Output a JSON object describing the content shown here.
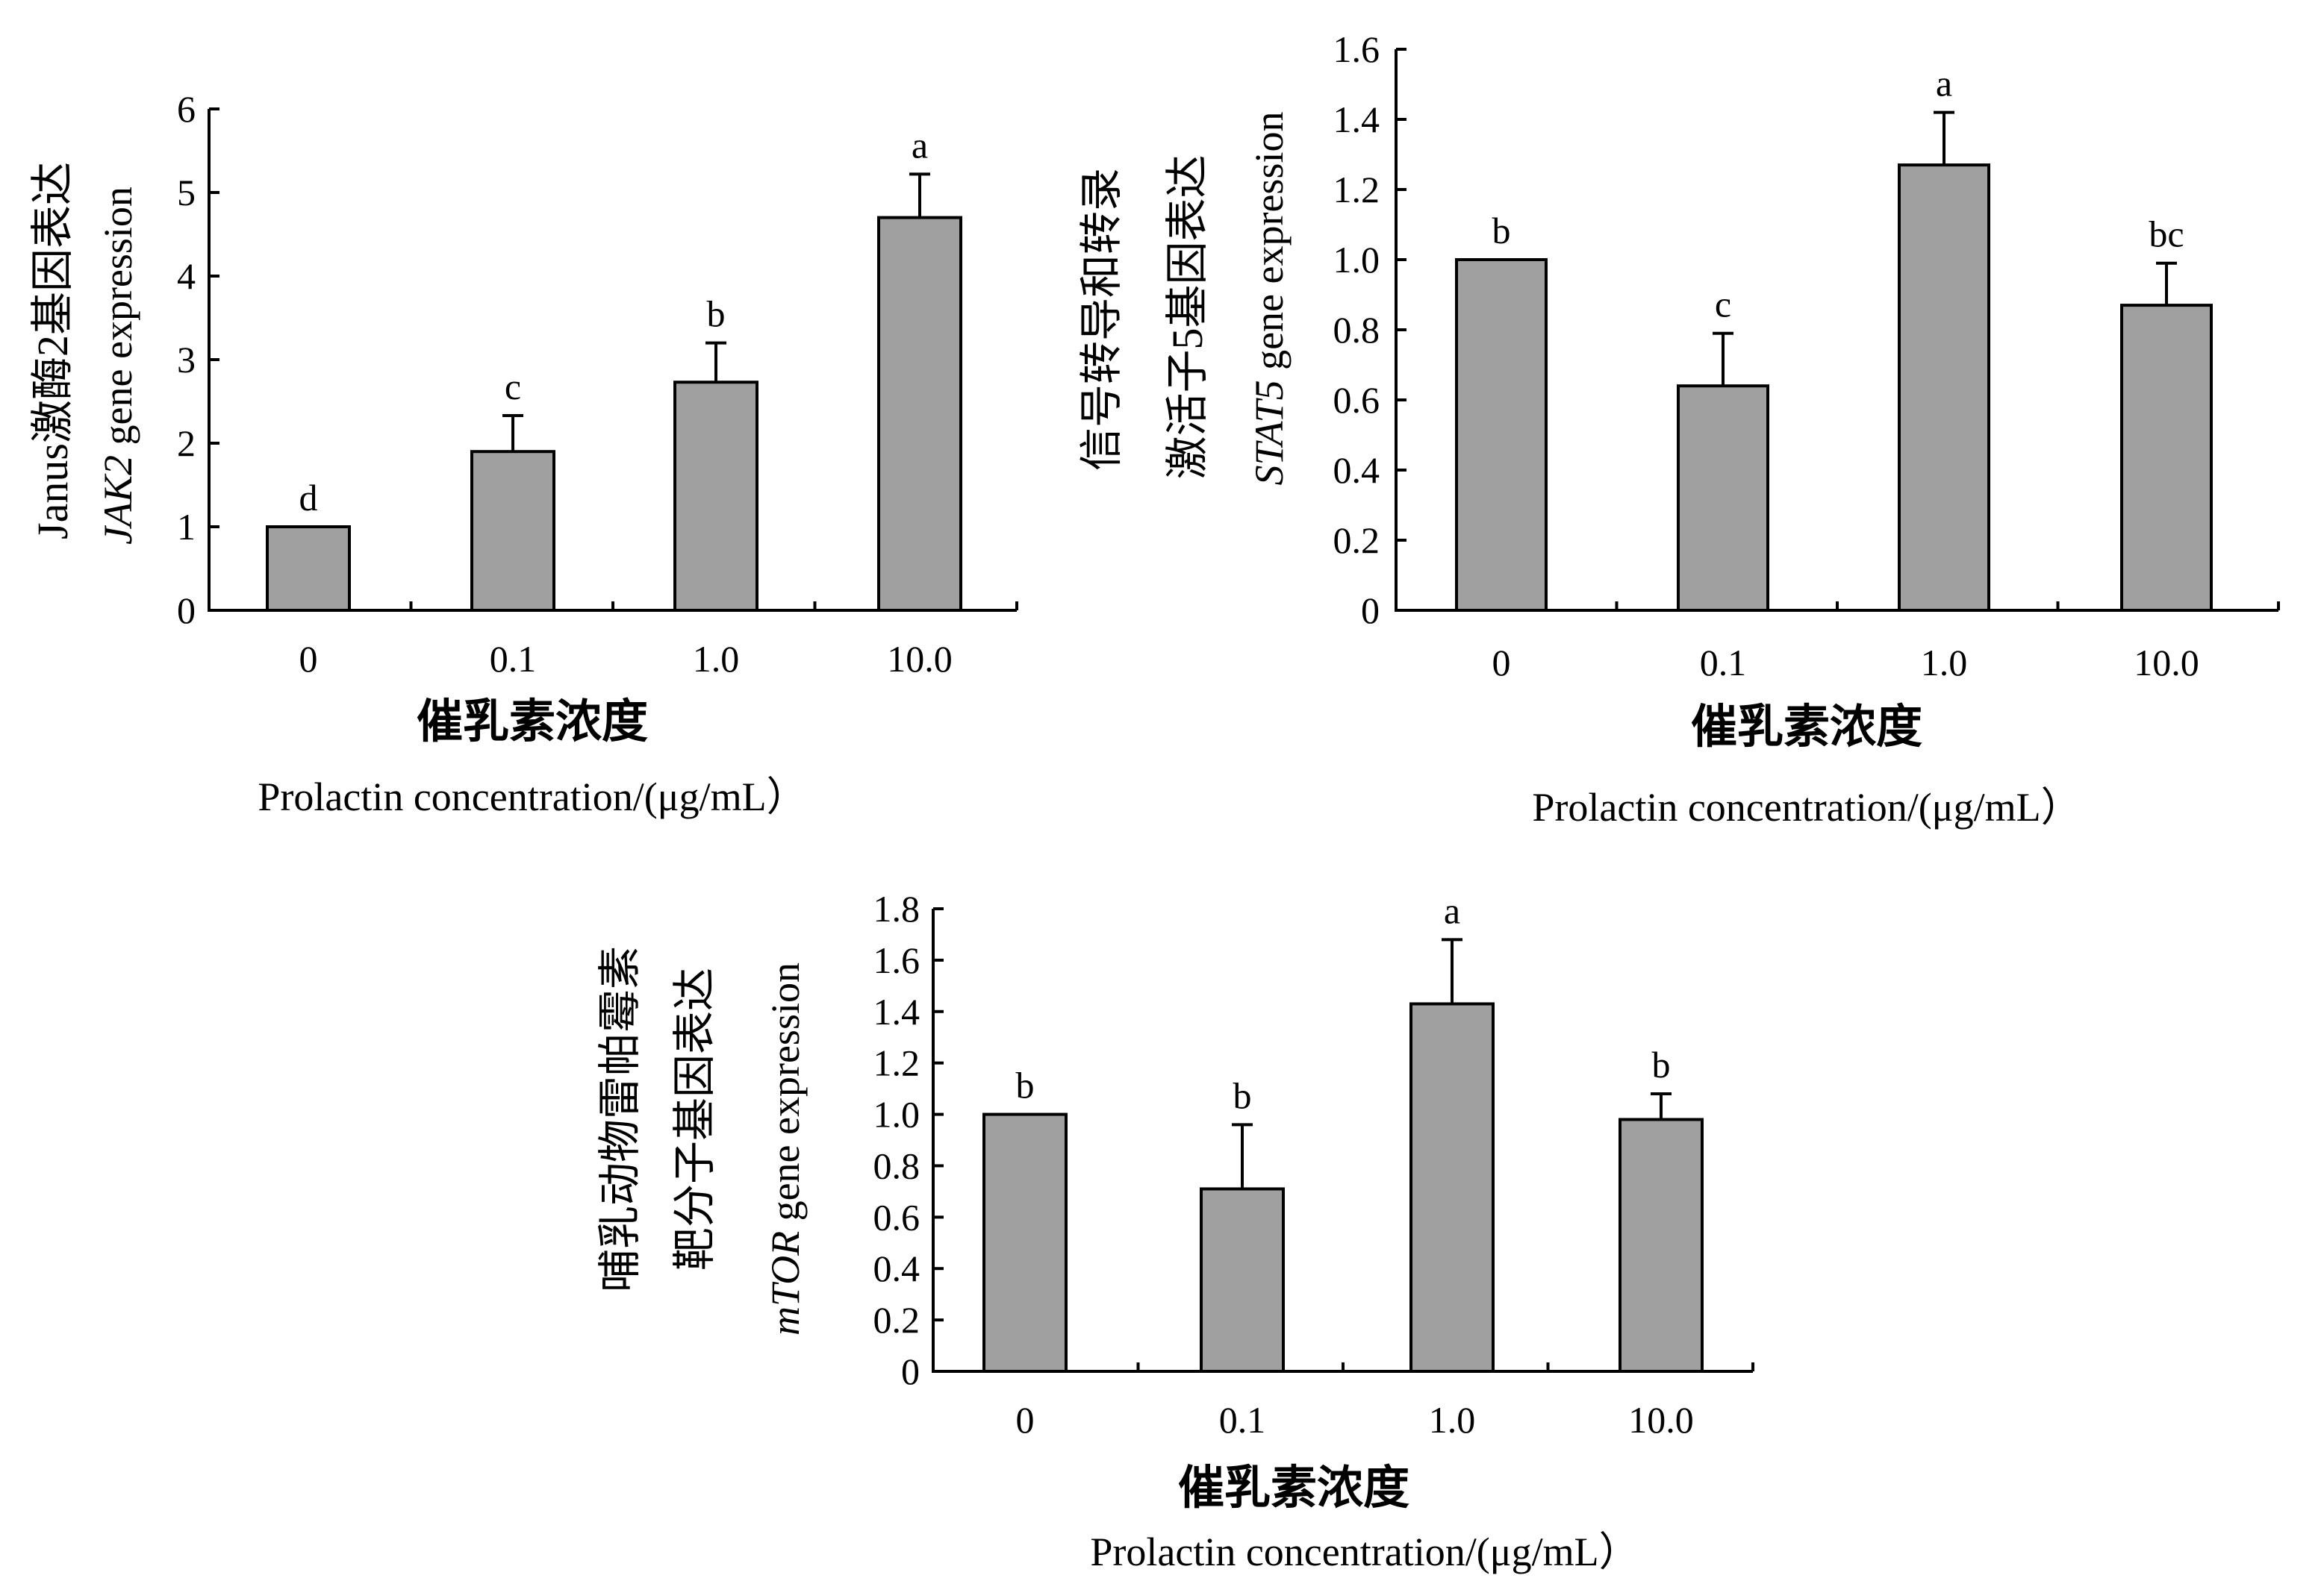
{
  "chart_data": [
    {
      "type": "bar",
      "categories": [
        "0",
        "0.1",
        "1.0",
        "10.0"
      ],
      "values": [
        1.0,
        1.9,
        2.73,
        4.7
      ],
      "errors": [
        0,
        0.43,
        0.47,
        0.52
      ],
      "significance": [
        "d",
        "c",
        "b",
        "a"
      ],
      "ylim": [
        0,
        6
      ],
      "yticks": [
        "0",
        "1",
        "2",
        "3",
        "4",
        "5",
        "6"
      ],
      "ylabel_cn": "Janus激酶2基因表达",
      "ylabel_en_italic": "JAK2",
      "ylabel_en": " gene expression",
      "xlabel_cn": "催乳素浓度",
      "xlabel_en": "Prolactin concentration/(μg/mL）",
      "bar_color": "#a0a0a0"
    },
    {
      "type": "bar",
      "categories": [
        "0",
        "0.1",
        "1.0",
        "10.0"
      ],
      "values": [
        1.0,
        0.64,
        1.27,
        0.87
      ],
      "errors": [
        0,
        0.15,
        0.15,
        0.12
      ],
      "significance": [
        "b",
        "c",
        "a",
        "bc"
      ],
      "ylim": [
        0,
        1.6
      ],
      "yticks": [
        "0",
        "0.2",
        "0.4",
        "0.6",
        "0.8",
        "1.0",
        "1.2",
        "1.4",
        "1.6"
      ],
      "ylabel_cn_1": "信号转导和转录",
      "ylabel_cn_2": "激活子5基因表达",
      "ylabel_en_italic": "STAT5",
      "ylabel_en": " gene expression",
      "xlabel_cn": "催乳素浓度",
      "xlabel_en": "Prolactin concentration/(μg/mL）",
      "bar_color": "#a0a0a0"
    },
    {
      "type": "bar",
      "categories": [
        "0",
        "0.1",
        "1.0",
        "10.0"
      ],
      "values": [
        1.0,
        0.71,
        1.43,
        0.98
      ],
      "errors": [
        0,
        0.25,
        0.25,
        0.1
      ],
      "significance": [
        "b",
        "b",
        "a",
        "b"
      ],
      "ylim": [
        0,
        1.8
      ],
      "yticks": [
        "0",
        "0.2",
        "0.4",
        "0.6",
        "0.8",
        "1.0",
        "1.2",
        "1.4",
        "1.6",
        "1.8"
      ],
      "ylabel_cn_1": "哺乳动物雷帕霉素",
      "ylabel_cn_2": "靶分子基因表达",
      "ylabel_en_italic": "mTOR",
      "ylabel_en": " gene expression",
      "xlabel_cn": "催乳素浓度",
      "xlabel_en": "Prolactin concentration/(μg/mL）",
      "bar_color": "#a0a0a0"
    }
  ]
}
